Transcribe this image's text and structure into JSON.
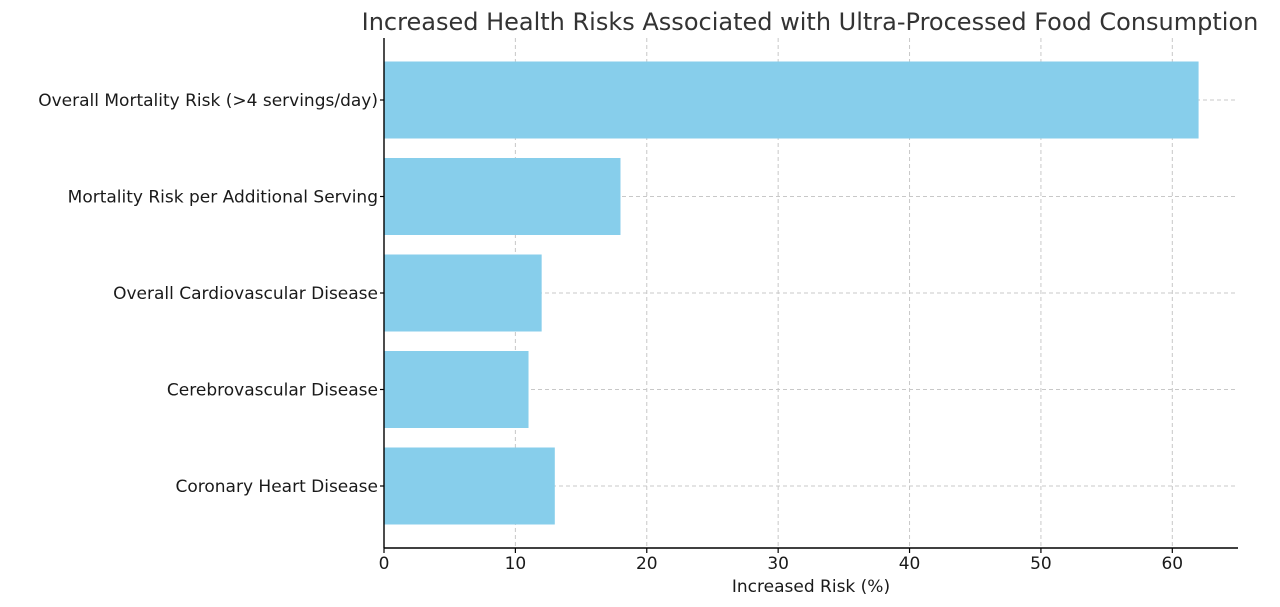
{
  "chart_data": {
    "type": "bar",
    "orientation": "horizontal",
    "title": "Increased Health Risks Associated with Ultra-Processed Food Consumption",
    "xlabel": "Increased Risk (%)",
    "ylabel": "",
    "categories": [
      "Overall Mortality Risk (>4 servings/day)",
      "Mortality Risk per Additional Serving",
      "Overall Cardiovascular Disease",
      "Cerebrovascular Disease",
      "Coronary Heart Disease"
    ],
    "values": [
      62,
      18,
      12,
      11,
      13
    ],
    "xlim": [
      0,
      65
    ],
    "xticks": [
      0,
      10,
      20,
      30,
      40,
      50,
      60
    ],
    "xtick_labels": [
      "0",
      "10",
      "20",
      "30",
      "40",
      "50",
      "60"
    ],
    "grid": true,
    "bar_color": "#87ceeb"
  }
}
